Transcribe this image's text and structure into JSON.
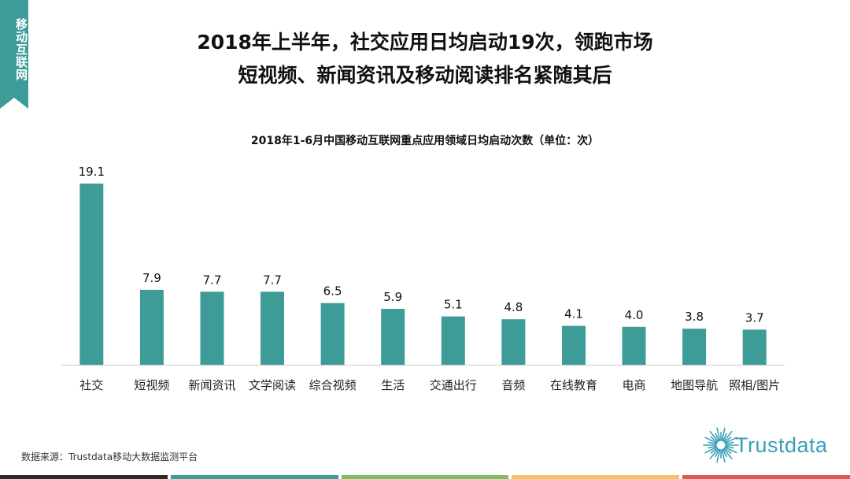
{
  "side_tab": {
    "label": "移动互联网",
    "color": "#3d9c98"
  },
  "headline": {
    "line1": "2018年上半年，社交应用日均启动19次，领跑市场",
    "line2": "短视频、新闻资讯及移动阅读排名紧随其后"
  },
  "chart_data": {
    "type": "bar",
    "title": "2018年1-6月中国移动互联网重点应用领域日均启动次数（单位：次）",
    "categories": [
      "社交",
      "短视频",
      "新闻资讯",
      "文学阅读",
      "综合视频",
      "生活",
      "交通出行",
      "音频",
      "在线教育",
      "电商",
      "地图导航",
      "照相/图片"
    ],
    "values": [
      19.1,
      7.9,
      7.7,
      7.7,
      6.5,
      5.9,
      5.1,
      4.8,
      4.1,
      4.0,
      3.8,
      3.7
    ],
    "value_labels": [
      "19.1",
      "7.9",
      "7.7",
      "7.7",
      "6.5",
      "5.9",
      "5.1",
      "4.8",
      "4.1",
      "4.0",
      "3.8",
      "3.7"
    ],
    "xlabel": "",
    "ylabel": "",
    "ylim": [
      0,
      19.1
    ],
    "grid": false,
    "bar_color": "#3d9c98"
  },
  "footer": {
    "source": "数据来源：Trustdata移动大数据监测平台"
  },
  "logo": {
    "text": "Trustdata",
    "icon": "starburst-icon",
    "color": "#3aa0b8"
  },
  "bottom_strip": {
    "colors": [
      "#2b2b2b",
      "#3d9c98",
      "#7fbf5f",
      "#f2c464",
      "#e0584f"
    ]
  }
}
